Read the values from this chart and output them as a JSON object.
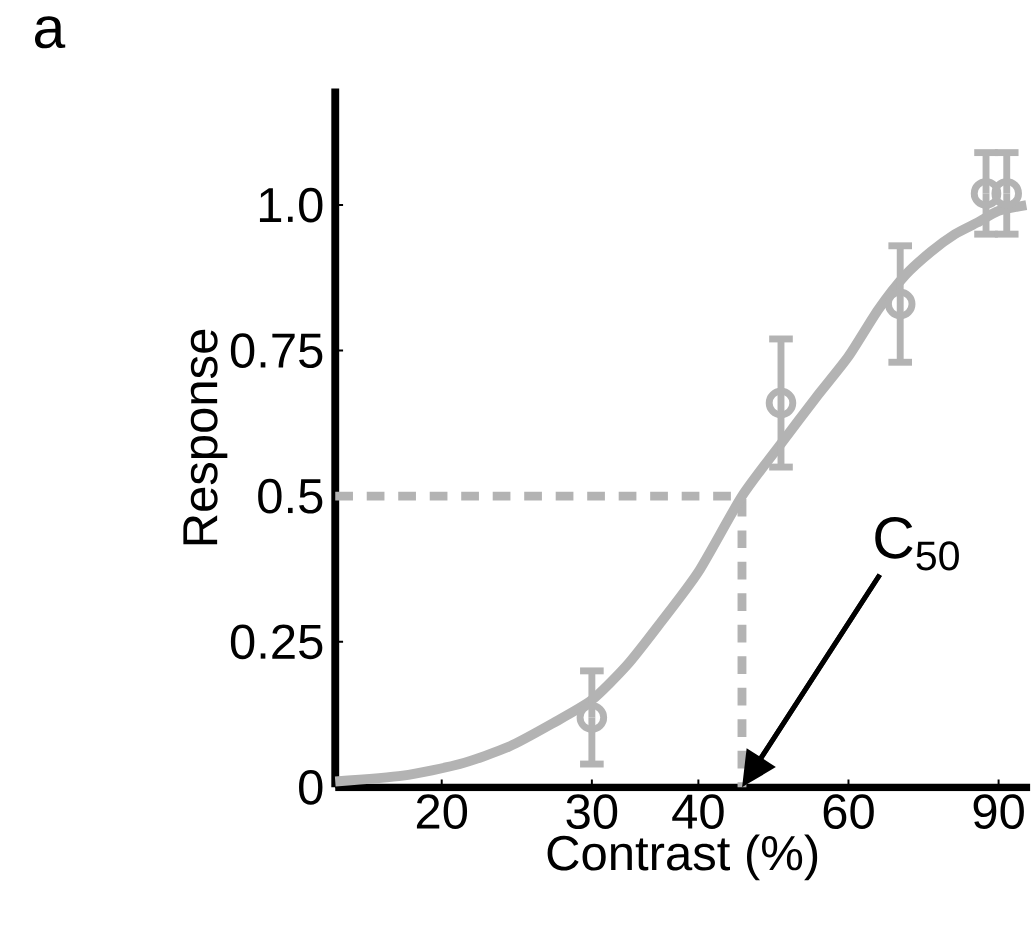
{
  "chart_data": {
    "type": "scatter",
    "title": "a",
    "xlabel": "Contrast (%)",
    "ylabel": "Response",
    "log": "x",
    "xlim": [
      15,
      98
    ],
    "ylim": [
      0,
      1.2
    ],
    "xticks": [
      20,
      30,
      40,
      60,
      90
    ],
    "yticks": [
      0,
      0.25,
      0.5,
      0.75,
      {
        "value": 1,
        "label": "1.0"
      }
    ],
    "grid": false,
    "series": [
      {
        "type": "line",
        "color": "#b3b3b3",
        "line_style": "dashed",
        "x": [
          15,
          45,
          45
        ],
        "values": [
          0.5,
          0.5,
          0
        ]
      },
      {
        "type": "line",
        "color": "#b3b3b3",
        "x": [
          15,
          18,
          21,
          24,
          27,
          30,
          33,
          36,
          40,
          45,
          50,
          55,
          60,
          65,
          70,
          75,
          80,
          85,
          90,
          97
        ],
        "values": [
          0.01,
          0.02,
          0.04,
          0.07,
          0.11,
          0.15,
          0.21,
          0.28,
          0.37,
          0.5,
          0.59,
          0.67,
          0.74,
          0.82,
          0.88,
          0.92,
          0.95,
          0.97,
          0.99,
          1.0
        ]
      },
      {
        "color": "#b3b3b3",
        "marker": "circle",
        "x": [
          30,
          50,
          69,
          87,
          92
        ],
        "values": [
          0.12,
          0.66,
          0.83,
          1.02,
          1.02
        ],
        "errors": [
          0.08,
          0.11,
          0.1,
          0.07,
          0.07
        ]
      }
    ],
    "annotations": [
      {
        "text": "C$_{50}$",
        "x": 45,
        "y": 0
      }
    ]
  }
}
